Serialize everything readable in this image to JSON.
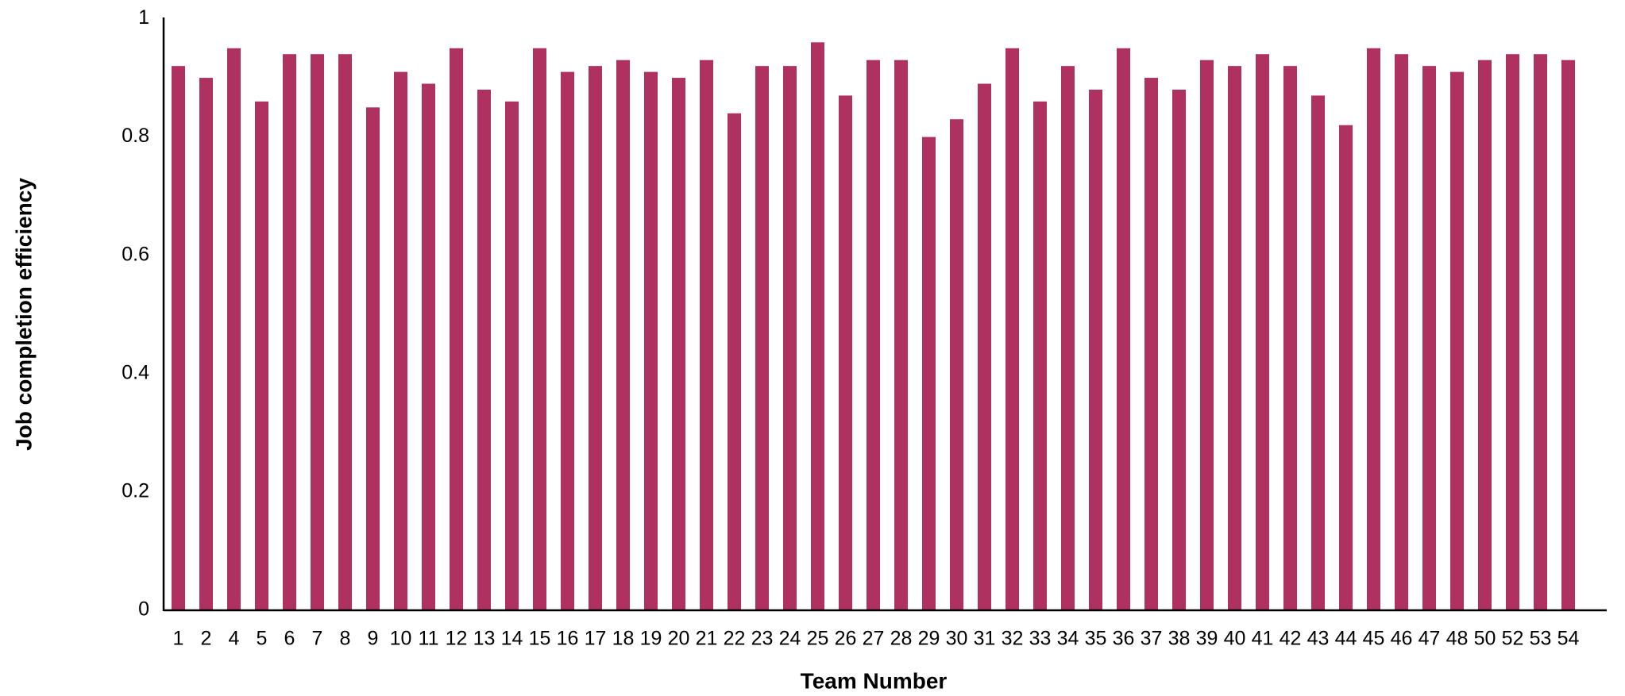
{
  "chart_data": {
    "type": "bar",
    "x_label": "Team Number",
    "y_label": "Job completion efficiency",
    "categories": [
      "1",
      "2",
      "4",
      "5",
      "6",
      "7",
      "8",
      "9",
      "10",
      "11",
      "12",
      "13",
      "14",
      "15",
      "16",
      "17",
      "18",
      "19",
      "20",
      "21",
      "22",
      "23",
      "24",
      "25",
      "26",
      "27",
      "28",
      "29",
      "30",
      "31",
      "32",
      "33",
      "34",
      "35",
      "36",
      "37",
      "38",
      "39",
      "40",
      "41",
      "42",
      "43",
      "44",
      "45",
      "46",
      "47",
      "48",
      "50",
      "52",
      "53",
      "54"
    ],
    "values": [
      0.92,
      0.9,
      0.95,
      0.86,
      0.94,
      0.94,
      0.94,
      0.85,
      0.91,
      0.89,
      0.95,
      0.88,
      0.86,
      0.95,
      0.91,
      0.92,
      0.93,
      0.91,
      0.9,
      0.93,
      0.84,
      0.92,
      0.92,
      0.96,
      0.87,
      0.93,
      0.93,
      0.8,
      0.83,
      0.89,
      0.95,
      0.86,
      0.92,
      0.88,
      0.95,
      0.9,
      0.88,
      0.93,
      0.92,
      0.94,
      0.92,
      0.87,
      0.82,
      0.95,
      0.94,
      0.92,
      0.91,
      0.93,
      0.94,
      0.94,
      0.93
    ],
    "color": "#ae3160",
    "ylim": [
      0,
      1
    ],
    "yticks": [
      0,
      0.2,
      0.4,
      0.6,
      0.8,
      1
    ],
    "grid": false
  }
}
